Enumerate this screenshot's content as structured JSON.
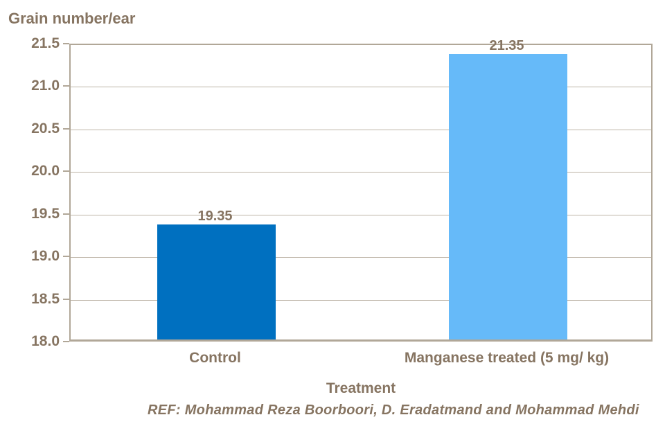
{
  "footer": "REF: Mohammad Reza Boorboori, D. Eradatmand and Mohammad Mehdi",
  "colors": {
    "text": "#867461",
    "gridline": "#bcb3a5",
    "plot_border": "#b1a798",
    "bar_control": "#0070c0",
    "bar_treated": "#66baf9"
  },
  "chart_data": {
    "type": "bar",
    "title": "Grain number/ear",
    "xlabel": "Treatment",
    "ylabel": "Grain number/ear",
    "categories": [
      "Control",
      "Manganese treated (5 mg/ kg)"
    ],
    "values": [
      19.35,
      21.35
    ],
    "data_labels": [
      "19.35",
      "21.35"
    ],
    "bar_colors": [
      "#0070c0",
      "#66baf9"
    ],
    "ylim": [
      18.0,
      21.5
    ],
    "ytick_step": 0.5,
    "ytick_labels": [
      "21.5",
      "21.0",
      "20.5",
      "20.0",
      "19.5",
      "19.0",
      "18.5",
      "18.0"
    ],
    "grid": true,
    "legend": false
  }
}
